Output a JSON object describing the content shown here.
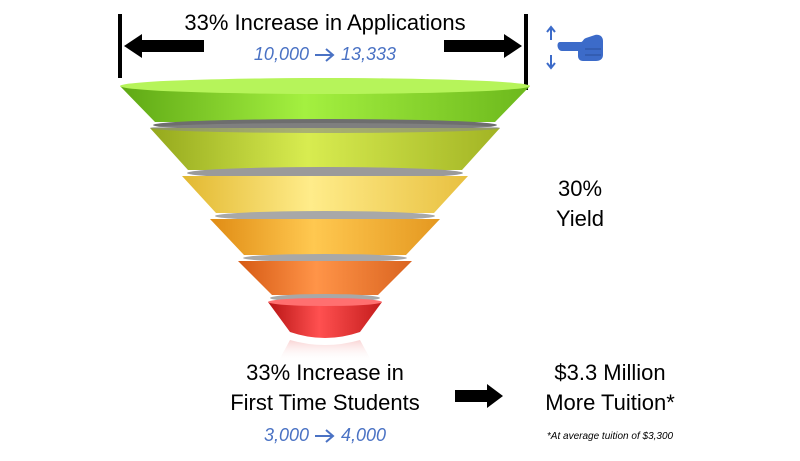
{
  "top": {
    "title": "33% Increase in Applications",
    "from": "10,000",
    "to": "13,333"
  },
  "yield": {
    "percent": "30%",
    "label": "Yield"
  },
  "bottom": {
    "line1": "33% Increase in",
    "line2": "First Time Students",
    "from": "3,000",
    "to": "4,000"
  },
  "result": {
    "line1": "$3.3 Million",
    "line2": "More Tuition*",
    "footnote": "*At average tuition of $3,300"
  },
  "icons": [
    "left-arrow-icon",
    "right-arrow-icon",
    "hand-pointer-icon",
    "right-arrow-icon"
  ],
  "colors": {
    "accent_text": "#4A72C4",
    "funnel_levels": [
      "#8ED82A",
      "#C3D92E",
      "#F7DB5A",
      "#F4B030",
      "#EE7A28",
      "#E02A2A"
    ]
  }
}
